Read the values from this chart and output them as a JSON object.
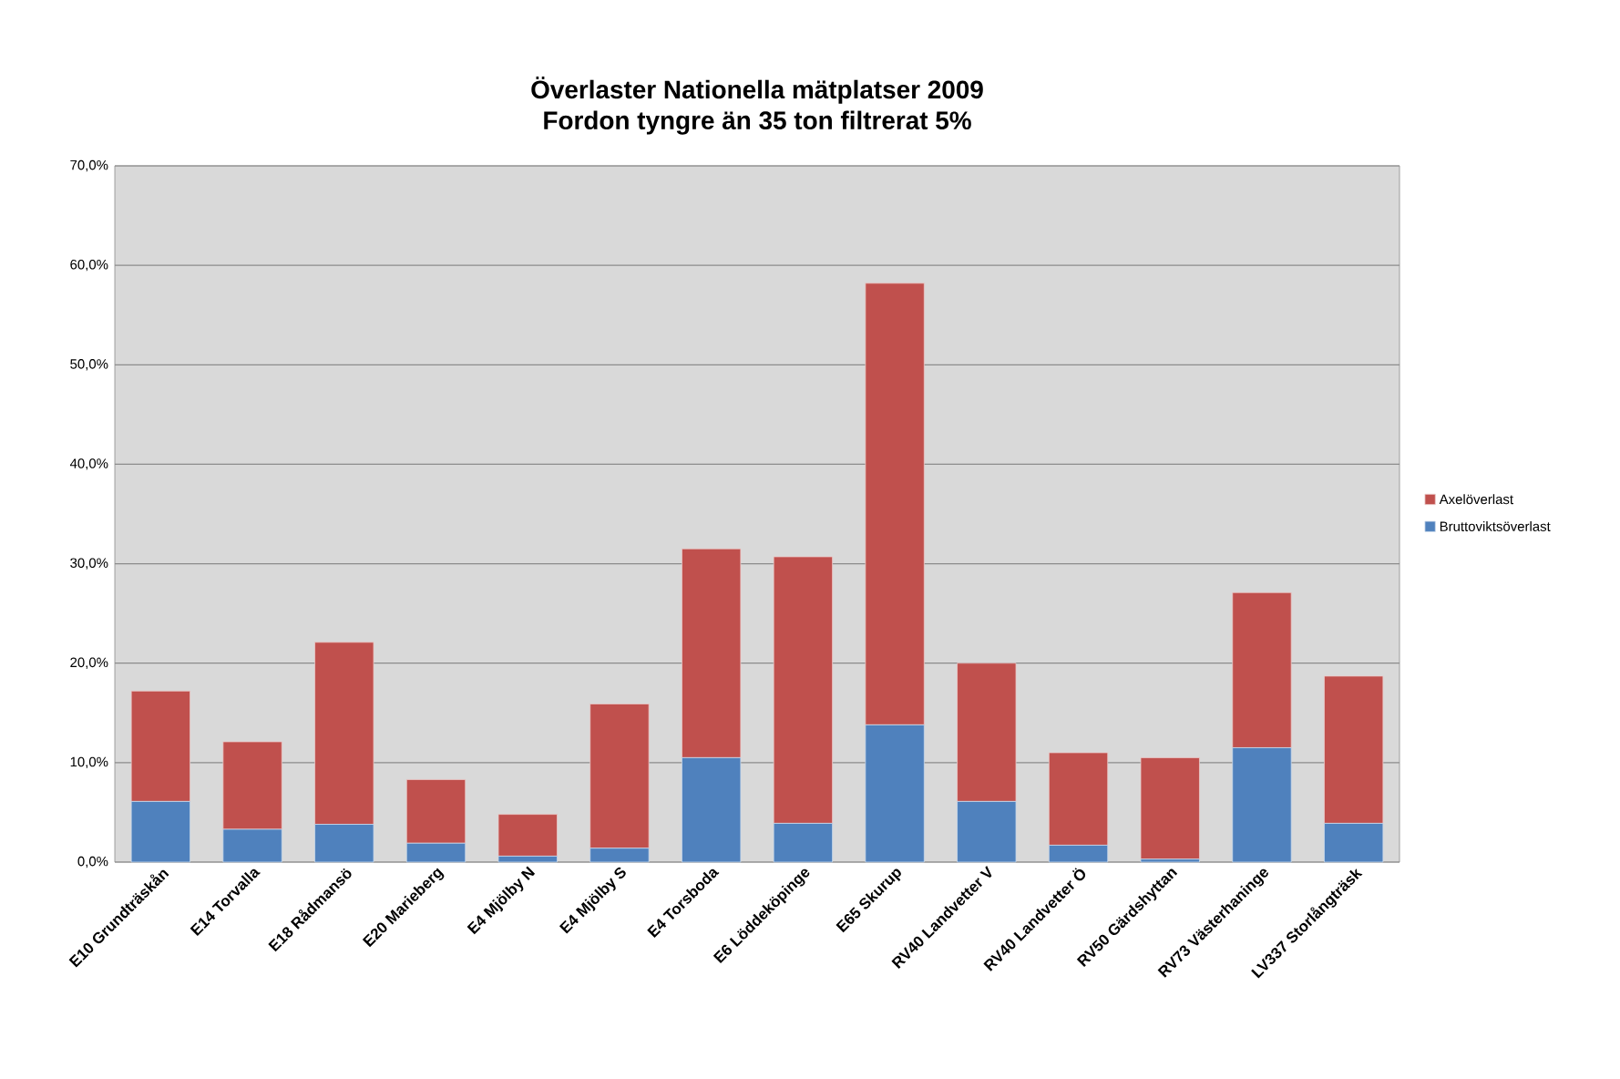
{
  "chart_data": {
    "type": "bar",
    "stacked": true,
    "title": "Överlaster Nationella mätplatser 2009",
    "subtitle": "Fordon tyngre än 35 ton filtrerat 5%",
    "categories": [
      "E10 Grundträskån",
      "E14 Torvalla",
      "E18 Rådmansö",
      "E20 Marieberg",
      "E4 Mjölby N",
      "E4 Mjölby S",
      "E4 Torsboda",
      "E6 Löddeköpinge",
      "E65 Skurup",
      "RV40 Landvetter V",
      "RV40 Landvetter Ö",
      "RV50 Gärdshyttan",
      "RV73 Västerhaninge",
      "LV337 Storlångträsk"
    ],
    "series": [
      {
        "name": "Bruttoviktsöverlast",
        "color": "#4f81bd",
        "values": [
          6.1,
          3.3,
          3.8,
          1.9,
          0.6,
          1.4,
          10.5,
          3.9,
          13.8,
          6.1,
          1.7,
          0.3,
          11.5,
          3.9
        ]
      },
      {
        "name": "Axelöverlast",
        "color": "#c0504d",
        "values": [
          11.1,
          8.8,
          18.3,
          6.4,
          4.2,
          14.5,
          21.0,
          26.8,
          44.4,
          13.9,
          9.3,
          10.2,
          15.6,
          14.8
        ]
      }
    ],
    "ylim": [
      0,
      70
    ],
    "yticks": [
      {
        "value": 0,
        "label": "0,0%"
      },
      {
        "value": 10,
        "label": "10,0%"
      },
      {
        "value": 20,
        "label": "20,0%"
      },
      {
        "value": 30,
        "label": "30,0%"
      },
      {
        "value": 40,
        "label": "40,0%"
      },
      {
        "value": 50,
        "label": "50,0%"
      },
      {
        "value": 60,
        "label": "60,0%"
      },
      {
        "value": 70,
        "label": "70,0%"
      }
    ],
    "grid": "y",
    "legend": "right"
  }
}
